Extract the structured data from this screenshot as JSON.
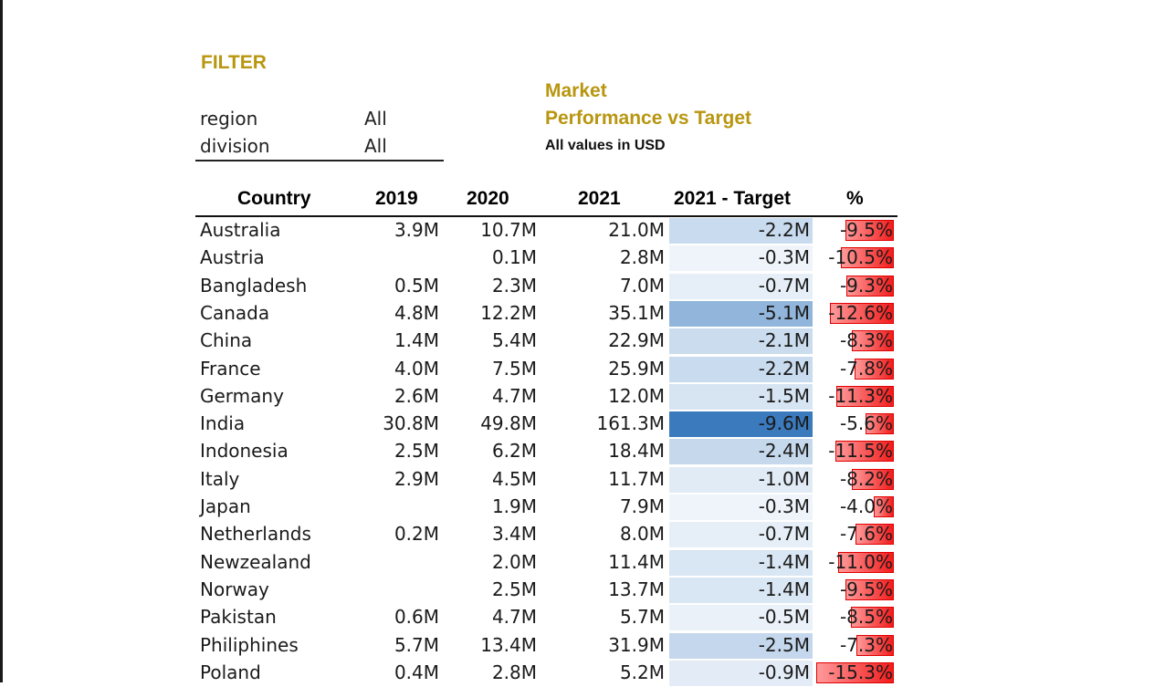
{
  "filter": {
    "title": "FILTER",
    "items": [
      {
        "label": "region",
        "value": "All"
      },
      {
        "label": "division",
        "value": "All"
      }
    ]
  },
  "report": {
    "title_line1": "Market",
    "title_line2": "Performance vs Target",
    "subtitle": "All values in USD"
  },
  "colors": {
    "accent": "#b8960f",
    "diff_scale_light": "#f4f8fc",
    "diff_scale_dark": "#3a7abd",
    "pct_bar": "#f21c1c"
  },
  "chart_data": {
    "type": "table",
    "columns": [
      "Country",
      "2019",
      "2020",
      "2021",
      "2021 - Target",
      "%"
    ],
    "rows": [
      {
        "country": "Australia",
        "y2019": "3.9M",
        "y2020": "10.7M",
        "y2021": "21.0M",
        "diff": "-2.2M",
        "diff_value": -2.2,
        "pct": "-9.5%",
        "pct_value": -9.5
      },
      {
        "country": "Austria",
        "y2019": "",
        "y2020": "0.1M",
        "y2021": "2.8M",
        "diff": "-0.3M",
        "diff_value": -0.3,
        "pct": "-10.5%",
        "pct_value": -10.5
      },
      {
        "country": "Bangladesh",
        "y2019": "0.5M",
        "y2020": "2.3M",
        "y2021": "7.0M",
        "diff": "-0.7M",
        "diff_value": -0.7,
        "pct": "-9.3%",
        "pct_value": -9.3
      },
      {
        "country": "Canada",
        "y2019": "4.8M",
        "y2020": "12.2M",
        "y2021": "35.1M",
        "diff": "-5.1M",
        "diff_value": -5.1,
        "pct": "-12.6%",
        "pct_value": -12.6
      },
      {
        "country": "China",
        "y2019": "1.4M",
        "y2020": "5.4M",
        "y2021": "22.9M",
        "diff": "-2.1M",
        "diff_value": -2.1,
        "pct": "-8.3%",
        "pct_value": -8.3
      },
      {
        "country": "France",
        "y2019": "4.0M",
        "y2020": "7.5M",
        "y2021": "25.9M",
        "diff": "-2.2M",
        "diff_value": -2.2,
        "pct": "-7.8%",
        "pct_value": -7.8
      },
      {
        "country": "Germany",
        "y2019": "2.6M",
        "y2020": "4.7M",
        "y2021": "12.0M",
        "diff": "-1.5M",
        "diff_value": -1.5,
        "pct": "-11.3%",
        "pct_value": -11.3
      },
      {
        "country": "India",
        "y2019": "30.8M",
        "y2020": "49.8M",
        "y2021": "161.3M",
        "diff": "-9.6M",
        "diff_value": -9.6,
        "pct": "-5.6%",
        "pct_value": -5.6
      },
      {
        "country": "Indonesia",
        "y2019": "2.5M",
        "y2020": "6.2M",
        "y2021": "18.4M",
        "diff": "-2.4M",
        "diff_value": -2.4,
        "pct": "-11.5%",
        "pct_value": -11.5
      },
      {
        "country": "Italy",
        "y2019": "2.9M",
        "y2020": "4.5M",
        "y2021": "11.7M",
        "diff": "-1.0M",
        "diff_value": -1.0,
        "pct": "-8.2%",
        "pct_value": -8.2
      },
      {
        "country": "Japan",
        "y2019": "",
        "y2020": "1.9M",
        "y2021": "7.9M",
        "diff": "-0.3M",
        "diff_value": -0.3,
        "pct": "-4.0%",
        "pct_value": -4.0
      },
      {
        "country": "Netherlands",
        "y2019": "0.2M",
        "y2020": "3.4M",
        "y2021": "8.0M",
        "diff": "-0.7M",
        "diff_value": -0.7,
        "pct": "-7.6%",
        "pct_value": -7.6
      },
      {
        "country": "Newzealand",
        "y2019": "",
        "y2020": "2.0M",
        "y2021": "11.4M",
        "diff": "-1.4M",
        "diff_value": -1.4,
        "pct": "-11.0%",
        "pct_value": -11.0
      },
      {
        "country": "Norway",
        "y2019": "",
        "y2020": "2.5M",
        "y2021": "13.7M",
        "diff": "-1.4M",
        "diff_value": -1.4,
        "pct": "-9.5%",
        "pct_value": -9.5
      },
      {
        "country": "Pakistan",
        "y2019": "0.6M",
        "y2020": "4.7M",
        "y2021": "5.7M",
        "diff": "-0.5M",
        "diff_value": -0.5,
        "pct": "-8.5%",
        "pct_value": -8.5
      },
      {
        "country": "Philiphines",
        "y2019": "5.7M",
        "y2020": "13.4M",
        "y2021": "31.9M",
        "diff": "-2.5M",
        "diff_value": -2.5,
        "pct": "-7.3%",
        "pct_value": -7.3
      },
      {
        "country": "Poland",
        "y2019": "0.4M",
        "y2020": "2.8M",
        "y2021": "5.2M",
        "diff": "-0.9M",
        "diff_value": -0.9,
        "pct": "-15.3%",
        "pct_value": -15.3
      }
    ]
  }
}
